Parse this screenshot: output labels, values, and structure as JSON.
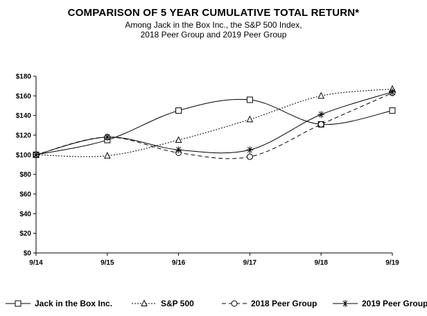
{
  "chart_data": {
    "type": "line",
    "title": "COMPARISON OF 5 YEAR CUMULATIVE TOTAL RETURN*",
    "subtitle_lines": [
      "Among Jack in the Box Inc., the S&P 500 Index,",
      "2018 Peer Group and 2019 Peer Group"
    ],
    "categories": [
      "9/14",
      "9/15",
      "9/16",
      "9/17",
      "9/18",
      "9/19"
    ],
    "ylim": [
      0,
      180
    ],
    "yticks": [
      0,
      20,
      40,
      60,
      80,
      100,
      120,
      140,
      160,
      180
    ],
    "ytick_labels": [
      "$0",
      "$20",
      "$40",
      "$60",
      "$80",
      "$100",
      "$120",
      "$140",
      "$160",
      "$180"
    ],
    "grid": false,
    "legend_position": "bottom",
    "series": [
      {
        "name": "Jack in the Box Inc.",
        "values": [
          100,
          115,
          145,
          156,
          131,
          145
        ],
        "line_style": "solid",
        "marker": "square",
        "color": "#000000"
      },
      {
        "name": "S&P 500",
        "values": [
          100,
          99,
          115,
          136,
          160,
          167
        ],
        "line_style": "dotted",
        "marker": "triangle",
        "color": "#000000"
      },
      {
        "name": "2018 Peer Group",
        "values": [
          100,
          118,
          102,
          98,
          131,
          163
        ],
        "line_style": "dashed",
        "marker": "circle",
        "color": "#000000"
      },
      {
        "name": "2019 Peer Group",
        "values": [
          100,
          118,
          105,
          105,
          141,
          164
        ],
        "line_style": "solid",
        "marker": "asterisk",
        "color": "#000000"
      }
    ]
  }
}
